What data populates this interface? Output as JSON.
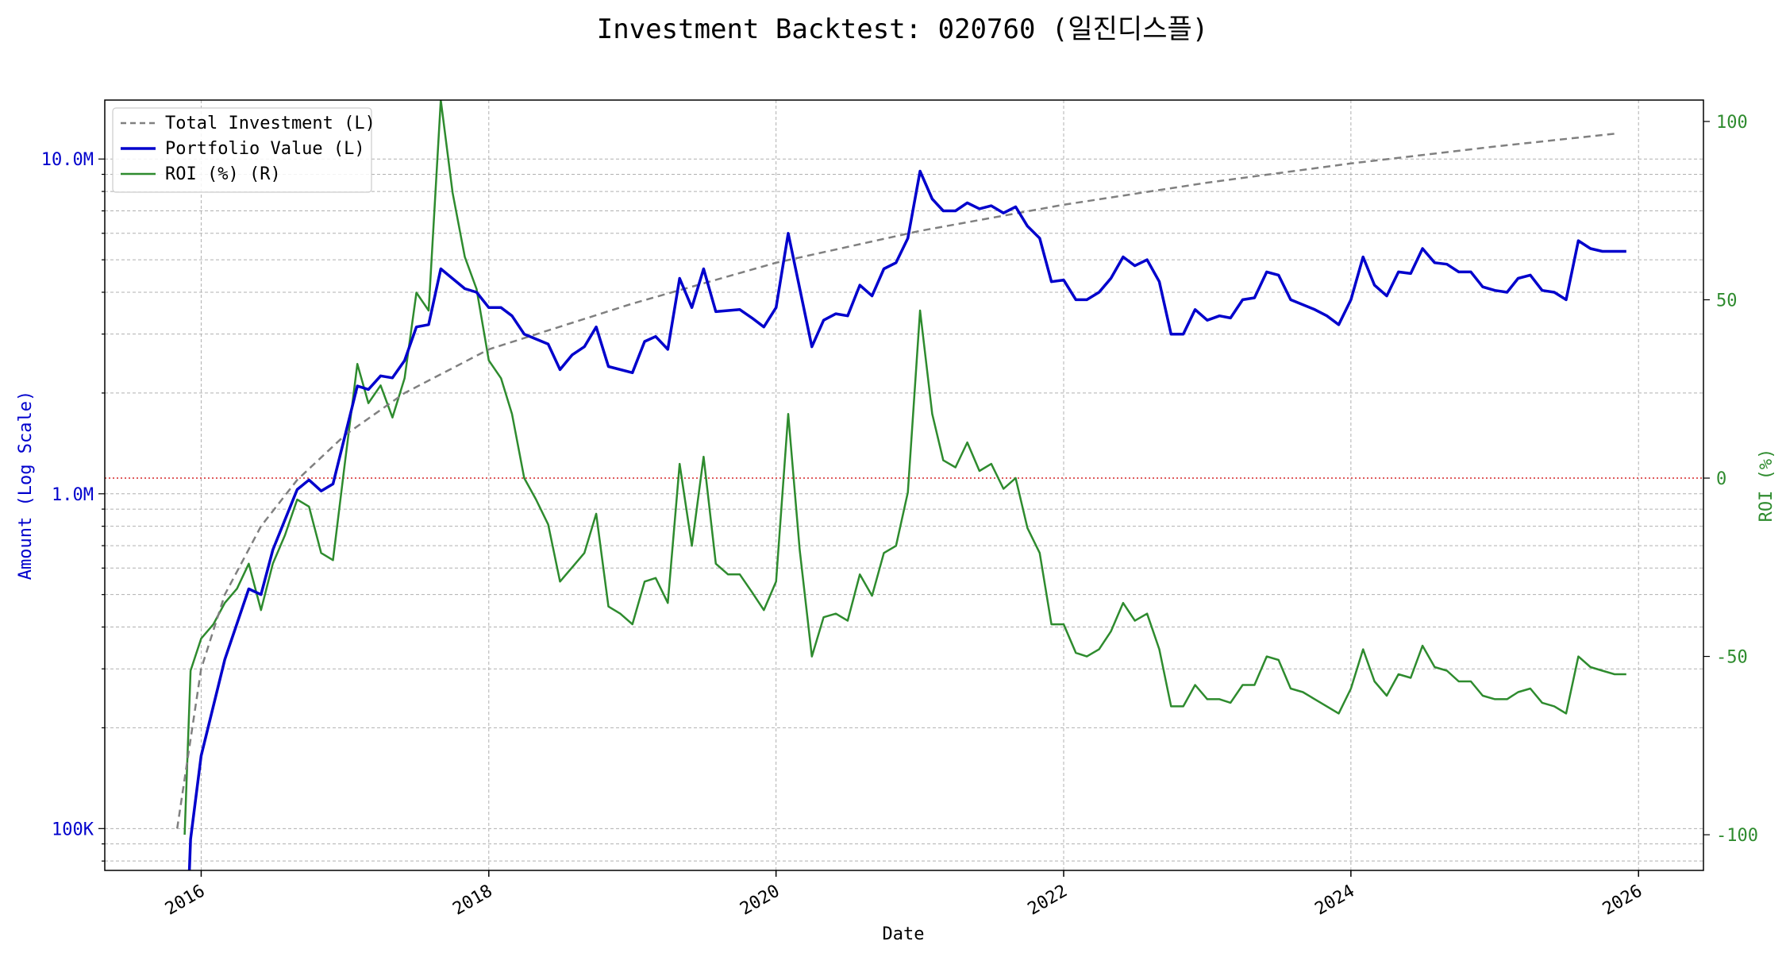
{
  "chart_data": {
    "type": "line",
    "title": "Investment Backtest: 020760 (일진디스플)",
    "xlabel": "Date",
    "ylabel_left": "Amount (Log Scale)",
    "ylabel_right": "ROI (%)",
    "x_ticks": [
      "2016",
      "2018",
      "2020",
      "2022",
      "2024",
      "2026"
    ],
    "y_left_scale": "log",
    "y_left_ticks": [
      {
        "value": 100000,
        "label": "100K"
      },
      {
        "value": 1000000,
        "label": "1.0M"
      },
      {
        "value": 10000000,
        "label": "10.0M"
      }
    ],
    "y_left_range": [
      75000,
      15000000
    ],
    "y_right_ticks": [
      -100,
      -50,
      0,
      50,
      100
    ],
    "y_right_range": [
      -110,
      106
    ],
    "x_range": [
      "2015-05-01",
      "2026-06-15"
    ],
    "grid": true,
    "legend_position": "top-left",
    "reference_line": {
      "axis": "right",
      "value": 0,
      "color": "#d62728",
      "style": "dotted"
    },
    "colors": {
      "total": "#808080",
      "portfolio": "#0000cc",
      "roi": "#2e8b2e",
      "left_axis": "#0000cc",
      "right_axis": "#2e8b2e"
    },
    "series": [
      {
        "name": "Total Investment (L)",
        "axis": "left",
        "style": "dashed",
        "color": "#808080",
        "points": [
          [
            "2015-11-01",
            100000
          ],
          [
            "2016-01-01",
            300000
          ],
          [
            "2016-03-01",
            500000
          ],
          [
            "2016-06-01",
            800000
          ],
          [
            "2016-09-01",
            1100000
          ],
          [
            "2017-01-01",
            1500000
          ],
          [
            "2017-06-01",
            2000000
          ],
          [
            "2018-01-01",
            2700000
          ],
          [
            "2019-01-01",
            3700000
          ],
          [
            "2020-01-01",
            4900000
          ],
          [
            "2021-01-01",
            6100000
          ],
          [
            "2022-01-01",
            7300000
          ],
          [
            "2023-01-01",
            8500000
          ],
          [
            "2024-01-01",
            9700000
          ],
          [
            "2025-01-01",
            10900000
          ],
          [
            "2025-11-01",
            11900000
          ]
        ]
      },
      {
        "name": "Portfolio Value (L)",
        "axis": "left",
        "style": "solid",
        "color": "#0000cc",
        "points": [
          [
            "2015-12-01",
            70000
          ],
          [
            "2015-12-05",
            93000
          ],
          [
            "2016-01-01",
            165000
          ],
          [
            "2016-03-01",
            320000
          ],
          [
            "2016-05-01",
            520000
          ],
          [
            "2016-06-01",
            500000
          ],
          [
            "2016-07-01",
            680000
          ],
          [
            "2016-09-01",
            1030000
          ],
          [
            "2016-10-01",
            1100000
          ],
          [
            "2016-11-01",
            1020000
          ],
          [
            "2016-12-01",
            1070000
          ],
          [
            "2017-02-01",
            2100000
          ],
          [
            "2017-03-01",
            2050000
          ],
          [
            "2017-04-01",
            2250000
          ],
          [
            "2017-05-01",
            2220000
          ],
          [
            "2017-06-01",
            2500000
          ],
          [
            "2017-07-01",
            3150000
          ],
          [
            "2017-08-01",
            3200000
          ],
          [
            "2017-09-01",
            4700000
          ],
          [
            "2017-11-01",
            4100000
          ],
          [
            "2017-12-01",
            4000000
          ],
          [
            "2018-01-01",
            3600000
          ],
          [
            "2018-02-01",
            3600000
          ],
          [
            "2018-03-01",
            3400000
          ],
          [
            "2018-04-01",
            3000000
          ],
          [
            "2018-06-01",
            2800000
          ],
          [
            "2018-07-01",
            2350000
          ],
          [
            "2018-08-01",
            2600000
          ],
          [
            "2018-09-01",
            2750000
          ],
          [
            "2018-10-01",
            3150000
          ],
          [
            "2018-11-01",
            2400000
          ],
          [
            "2019-01-01",
            2300000
          ],
          [
            "2019-02-01",
            2850000
          ],
          [
            "2019-03-01",
            2950000
          ],
          [
            "2019-04-01",
            2700000
          ],
          [
            "2019-05-01",
            4400000
          ],
          [
            "2019-06-01",
            3600000
          ],
          [
            "2019-07-01",
            4700000
          ],
          [
            "2019-08-01",
            3500000
          ],
          [
            "2019-10-01",
            3550000
          ],
          [
            "2019-11-01",
            3350000
          ],
          [
            "2019-12-01",
            3150000
          ],
          [
            "2020-01-01",
            3600000
          ],
          [
            "2020-02-01",
            6000000
          ],
          [
            "2020-04-01",
            2750000
          ],
          [
            "2020-05-01",
            3300000
          ],
          [
            "2020-06-01",
            3450000
          ],
          [
            "2020-07-01",
            3400000
          ],
          [
            "2020-08-01",
            4200000
          ],
          [
            "2020-09-01",
            3900000
          ],
          [
            "2020-10-01",
            4700000
          ],
          [
            "2020-11-01",
            4900000
          ],
          [
            "2020-12-01",
            5800000
          ],
          [
            "2021-01-01",
            9200000
          ],
          [
            "2021-02-01",
            7600000
          ],
          [
            "2021-03-01",
            7000000
          ],
          [
            "2021-04-01",
            7000000
          ],
          [
            "2021-05-01",
            7400000
          ],
          [
            "2021-06-01",
            7100000
          ],
          [
            "2021-07-01",
            7250000
          ],
          [
            "2021-08-01",
            6900000
          ],
          [
            "2021-09-01",
            7200000
          ],
          [
            "2021-10-01",
            6300000
          ],
          [
            "2021-11-01",
            5800000
          ],
          [
            "2021-12-01",
            4300000
          ],
          [
            "2022-01-01",
            4350000
          ],
          [
            "2022-02-01",
            3800000
          ],
          [
            "2022-03-01",
            3800000
          ],
          [
            "2022-04-01",
            4000000
          ],
          [
            "2022-05-01",
            4400000
          ],
          [
            "2022-06-01",
            5100000
          ],
          [
            "2022-07-01",
            4800000
          ],
          [
            "2022-08-01",
            5000000
          ],
          [
            "2022-09-01",
            4300000
          ],
          [
            "2022-10-01",
            3000000
          ],
          [
            "2022-11-01",
            3000000
          ],
          [
            "2022-12-01",
            3550000
          ],
          [
            "2023-01-01",
            3300000
          ],
          [
            "2023-02-01",
            3400000
          ],
          [
            "2023-03-01",
            3350000
          ],
          [
            "2023-04-01",
            3800000
          ],
          [
            "2023-05-01",
            3850000
          ],
          [
            "2023-06-01",
            4600000
          ],
          [
            "2023-07-01",
            4500000
          ],
          [
            "2023-08-01",
            3800000
          ],
          [
            "2023-10-01",
            3550000
          ],
          [
            "2023-11-01",
            3400000
          ],
          [
            "2023-12-01",
            3200000
          ],
          [
            "2024-01-01",
            3800000
          ],
          [
            "2024-02-01",
            5100000
          ],
          [
            "2024-03-01",
            4200000
          ],
          [
            "2024-04-01",
            3900000
          ],
          [
            "2024-05-01",
            4600000
          ],
          [
            "2024-06-01",
            4550000
          ],
          [
            "2024-07-01",
            5400000
          ],
          [
            "2024-08-01",
            4900000
          ],
          [
            "2024-09-01",
            4850000
          ],
          [
            "2024-10-01",
            4600000
          ],
          [
            "2024-11-01",
            4600000
          ],
          [
            "2024-12-01",
            4150000
          ],
          [
            "2025-01-01",
            4050000
          ],
          [
            "2025-02-01",
            4000000
          ],
          [
            "2025-03-01",
            4400000
          ],
          [
            "2025-04-01",
            4500000
          ],
          [
            "2025-05-01",
            4050000
          ],
          [
            "2025-06-01",
            4000000
          ],
          [
            "2025-07-01",
            3800000
          ],
          [
            "2025-08-01",
            5700000
          ],
          [
            "2025-09-01",
            5400000
          ],
          [
            "2025-10-01",
            5300000
          ],
          [
            "2025-11-01",
            5300000
          ],
          [
            "2025-12-01",
            5300000
          ]
        ]
      },
      {
        "name": "ROI (%) (R)",
        "axis": "right",
        "style": "solid",
        "color": "#2e8b2e",
        "points": [
          [
            "2015-11-20",
            -100
          ],
          [
            "2015-12-05",
            -54
          ],
          [
            "2016-01-01",
            -45
          ],
          [
            "2016-02-01",
            -41
          ],
          [
            "2016-03-01",
            -35
          ],
          [
            "2016-04-01",
            -31
          ],
          [
            "2016-05-01",
            -24
          ],
          [
            "2016-06-01",
            -37
          ],
          [
            "2016-07-01",
            -24
          ],
          [
            "2016-08-01",
            -16
          ],
          [
            "2016-09-01",
            -6
          ],
          [
            "2016-10-01",
            -8
          ],
          [
            "2016-11-01",
            -21
          ],
          [
            "2016-12-01",
            -23
          ],
          [
            "2017-01-01",
            5
          ],
          [
            "2017-02-01",
            32
          ],
          [
            "2017-03-01",
            21
          ],
          [
            "2017-04-01",
            26
          ],
          [
            "2017-05-01",
            17
          ],
          [
            "2017-06-01",
            28
          ],
          [
            "2017-07-01",
            52
          ],
          [
            "2017-08-01",
            47
          ],
          [
            "2017-09-01",
            106
          ],
          [
            "2017-10-01",
            80
          ],
          [
            "2017-11-01",
            62
          ],
          [
            "2017-12-01",
            53
          ],
          [
            "2018-01-01",
            33
          ],
          [
            "2018-02-01",
            28
          ],
          [
            "2018-03-01",
            18
          ],
          [
            "2018-04-01",
            0
          ],
          [
            "2018-05-01",
            -6
          ],
          [
            "2018-06-01",
            -13
          ],
          [
            "2018-07-01",
            -29
          ],
          [
            "2018-08-01",
            -25
          ],
          [
            "2018-09-01",
            -21
          ],
          [
            "2018-10-01",
            -10
          ],
          [
            "2018-11-01",
            -36
          ],
          [
            "2018-12-01",
            -38
          ],
          [
            "2019-01-01",
            -41
          ],
          [
            "2019-02-01",
            -29
          ],
          [
            "2019-03-01",
            -28
          ],
          [
            "2019-04-01",
            -35
          ],
          [
            "2019-05-01",
            4
          ],
          [
            "2019-06-01",
            -19
          ],
          [
            "2019-07-01",
            6
          ],
          [
            "2019-08-01",
            -24
          ],
          [
            "2019-09-01",
            -27
          ],
          [
            "2019-10-01",
            -27
          ],
          [
            "2019-11-01",
            -32
          ],
          [
            "2019-12-01",
            -37
          ],
          [
            "2020-01-01",
            -29
          ],
          [
            "2020-02-01",
            18
          ],
          [
            "2020-03-01",
            -20
          ],
          [
            "2020-04-01",
            -50
          ],
          [
            "2020-05-01",
            -39
          ],
          [
            "2020-06-01",
            -38
          ],
          [
            "2020-07-01",
            -40
          ],
          [
            "2020-08-01",
            -27
          ],
          [
            "2020-09-01",
            -33
          ],
          [
            "2020-10-01",
            -21
          ],
          [
            "2020-11-01",
            -19
          ],
          [
            "2020-12-01",
            -4
          ],
          [
            "2021-01-01",
            47
          ],
          [
            "2021-02-01",
            18
          ],
          [
            "2021-03-01",
            5
          ],
          [
            "2021-04-01",
            3
          ],
          [
            "2021-05-01",
            10
          ],
          [
            "2021-06-01",
            2
          ],
          [
            "2021-07-01",
            4
          ],
          [
            "2021-08-01",
            -3
          ],
          [
            "2021-09-01",
            0
          ],
          [
            "2021-10-01",
            -14
          ],
          [
            "2021-11-01",
            -21
          ],
          [
            "2021-12-01",
            -41
          ],
          [
            "2022-01-01",
            -41
          ],
          [
            "2022-02-01",
            -49
          ],
          [
            "2022-03-01",
            -50
          ],
          [
            "2022-04-01",
            -48
          ],
          [
            "2022-05-01",
            -43
          ],
          [
            "2022-06-01",
            -35
          ],
          [
            "2022-07-01",
            -40
          ],
          [
            "2022-08-01",
            -38
          ],
          [
            "2022-09-01",
            -48
          ],
          [
            "2022-10-01",
            -64
          ],
          [
            "2022-11-01",
            -64
          ],
          [
            "2022-12-01",
            -58
          ],
          [
            "2023-01-01",
            -62
          ],
          [
            "2023-02-01",
            -62
          ],
          [
            "2023-03-01",
            -63
          ],
          [
            "2023-04-01",
            -58
          ],
          [
            "2023-05-01",
            -58
          ],
          [
            "2023-06-01",
            -50
          ],
          [
            "2023-07-01",
            -51
          ],
          [
            "2023-08-01",
            -59
          ],
          [
            "2023-09-01",
            -60
          ],
          [
            "2023-10-01",
            -62
          ],
          [
            "2023-12-01",
            -66
          ],
          [
            "2024-01-01",
            -59
          ],
          [
            "2024-02-01",
            -48
          ],
          [
            "2024-03-01",
            -57
          ],
          [
            "2024-04-01",
            -61
          ],
          [
            "2024-05-01",
            -55
          ],
          [
            "2024-06-01",
            -56
          ],
          [
            "2024-07-01",
            -47
          ],
          [
            "2024-08-01",
            -53
          ],
          [
            "2024-09-01",
            -54
          ],
          [
            "2024-10-01",
            -57
          ],
          [
            "2024-11-01",
            -57
          ],
          [
            "2024-12-01",
            -61
          ],
          [
            "2025-01-01",
            -62
          ],
          [
            "2025-02-01",
            -62
          ],
          [
            "2025-03-01",
            -60
          ],
          [
            "2025-04-01",
            -59
          ],
          [
            "2025-05-01",
            -63
          ],
          [
            "2025-06-01",
            -64
          ],
          [
            "2025-07-01",
            -66
          ],
          [
            "2025-08-01",
            -50
          ],
          [
            "2025-09-01",
            -53
          ],
          [
            "2025-10-01",
            -54
          ],
          [
            "2025-11-01",
            -55
          ],
          [
            "2025-12-01",
            -55
          ]
        ]
      }
    ]
  }
}
